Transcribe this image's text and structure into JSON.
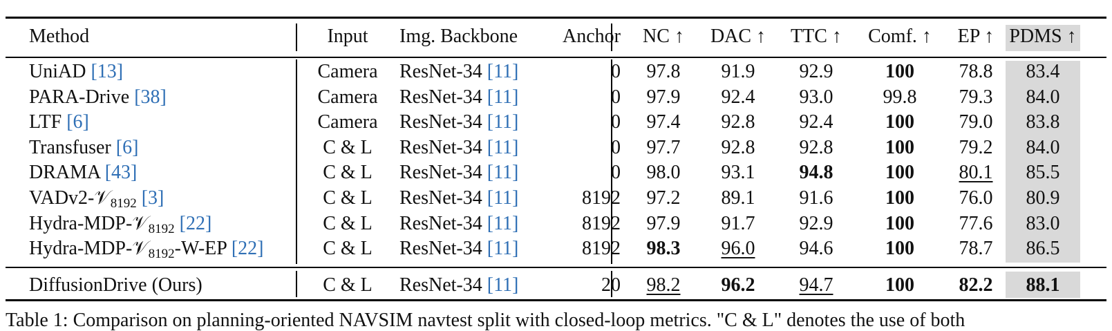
{
  "headers": {
    "method": "Method",
    "input": "Input",
    "backbone": "Img. Backbone",
    "anchor": "Anchor",
    "nc": "NC ↑",
    "dac": "DAC ↑",
    "ttc": "TTC ↑",
    "comf": "Comf. ↑",
    "ep": "EP ↑",
    "pdms": "PDMS ↑"
  },
  "rows": [
    {
      "name": "UniAD",
      "sub": "",
      "suffix": "",
      "cite": "[13]",
      "input": "Camera",
      "backbone": "ResNet-34",
      "backbone_cite": "[11]",
      "anchor": "0",
      "nc": "97.8",
      "dac": "91.9",
      "ttc": "92.9",
      "comf": "100",
      "ep": "78.8",
      "pdms": "83.4"
    },
    {
      "name": "PARA-Drive",
      "sub": "",
      "suffix": "",
      "cite": "[38]",
      "input": "Camera",
      "backbone": "ResNet-34",
      "backbone_cite": "[11]",
      "anchor": "0",
      "nc": "97.9",
      "dac": "92.4",
      "ttc": "93.0",
      "comf": "99.8",
      "ep": "79.3",
      "pdms": "84.0"
    },
    {
      "name": "LTF",
      "sub": "",
      "suffix": "",
      "cite": "[6]",
      "input": "Camera",
      "backbone": "ResNet-34",
      "backbone_cite": "[11]",
      "anchor": "0",
      "nc": "97.4",
      "dac": "92.8",
      "ttc": "92.4",
      "comf": "100",
      "ep": "79.0",
      "pdms": "83.8"
    },
    {
      "name": "Transfuser",
      "sub": "",
      "suffix": "",
      "cite": "[6]",
      "input": "C & L",
      "backbone": "ResNet-34",
      "backbone_cite": "[11]",
      "anchor": "0",
      "nc": "97.7",
      "dac": "92.8",
      "ttc": "92.8",
      "comf": "100",
      "ep": "79.2",
      "pdms": "84.0"
    },
    {
      "name": "DRAMA",
      "sub": "",
      "suffix": "",
      "cite": "[43]",
      "input": "C & L",
      "backbone": "ResNet-34",
      "backbone_cite": "[11]",
      "anchor": "0",
      "nc": "98.0",
      "dac": "93.1",
      "ttc": "94.8",
      "comf": "100",
      "ep": "80.1",
      "pdms": "85.5"
    },
    {
      "name": "VADv2-𝒱",
      "sub": "8192",
      "suffix": "",
      "cite": "[3]",
      "input": "C & L",
      "backbone": "ResNet-34",
      "backbone_cite": "[11]",
      "anchor": "8192",
      "nc": "97.2",
      "dac": "89.1",
      "ttc": "91.6",
      "comf": "100",
      "ep": "76.0",
      "pdms": "80.9"
    },
    {
      "name": "Hydra-MDP-𝒱",
      "sub": "8192",
      "suffix": "",
      "cite": "[22]",
      "input": "C & L",
      "backbone": "ResNet-34",
      "backbone_cite": "[11]",
      "anchor": "8192",
      "nc": "97.9",
      "dac": "91.7",
      "ttc": "92.9",
      "comf": "100",
      "ep": "77.6",
      "pdms": "83.0"
    },
    {
      "name": "Hydra-MDP-𝒱",
      "sub": "8192",
      "suffix": "-W-EP",
      "cite": "[22]",
      "input": "C & L",
      "backbone": "ResNet-34",
      "backbone_cite": "[11]",
      "anchor": "8192",
      "nc": "98.3",
      "dac": "96.0",
      "ttc": "94.6",
      "comf": "100",
      "ep": "78.7",
      "pdms": "86.5"
    }
  ],
  "ours": {
    "name": "DiffusionDrive (Ours)",
    "input": "C & L",
    "backbone": "ResNet-34",
    "backbone_cite": "[11]",
    "anchor": "20",
    "nc": "98.2",
    "dac": "96.2",
    "ttc": "94.7",
    "comf": "100",
    "ep": "82.2",
    "pdms": "88.1"
  },
  "caption": "Table 1: Comparison on planning-oriented NAVSIM navtest split with closed-loop metrics. \"C & L\" denotes the use of both"
}
